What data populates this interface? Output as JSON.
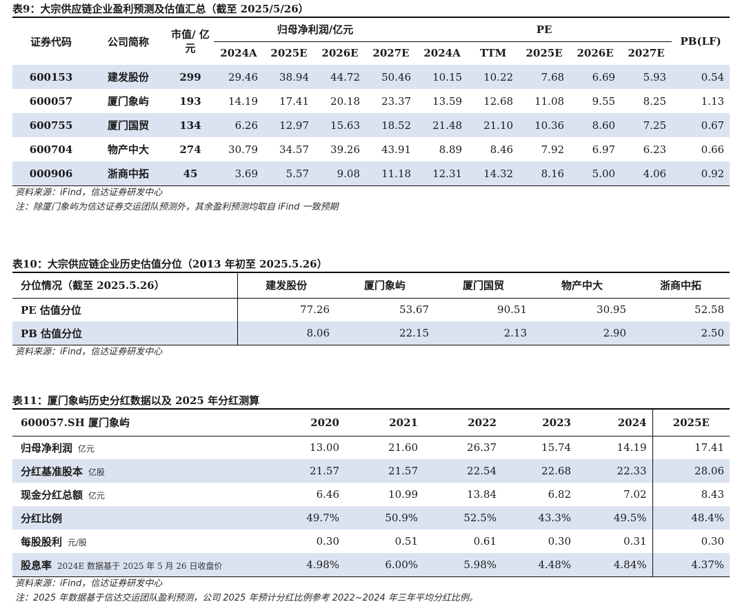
{
  "t9": {
    "title": "表9：大宗供应链企业盈利预测及估值汇总（截至 2025/5/26）",
    "h_code": "证券代码",
    "h_name": "公司简称",
    "h_mcap": "市值/ 亿元",
    "h_profit": "归母净利润/亿元",
    "h_pe": "PE",
    "h_pb": "PB(LF)",
    "sub": [
      "2024A",
      "2025E",
      "2026E",
      "2027E",
      "2024A",
      "TTM",
      "2025E",
      "2026E",
      "2027E"
    ],
    "rows": [
      {
        "code": "600153",
        "name": "建发股份",
        "mcap": "299",
        "vals": [
          "29.46",
          "38.94",
          "44.72",
          "50.46",
          "10.15",
          "10.22",
          "7.68",
          "6.69",
          "5.93",
          "0.54"
        ]
      },
      {
        "code": "600057",
        "name": "厦门象屿",
        "mcap": "193",
        "vals": [
          "14.19",
          "17.41",
          "20.18",
          "23.37",
          "13.59",
          "12.68",
          "11.08",
          "9.55",
          "8.25",
          "1.13"
        ]
      },
      {
        "code": "600755",
        "name": "厦门国贸",
        "mcap": "134",
        "vals": [
          "6.26",
          "12.97",
          "15.63",
          "18.52",
          "21.48",
          "21.10",
          "10.36",
          "8.60",
          "7.25",
          "0.67"
        ]
      },
      {
        "code": "600704",
        "name": "物产中大",
        "mcap": "274",
        "vals": [
          "30.79",
          "34.57",
          "39.26",
          "43.91",
          "8.89",
          "8.46",
          "7.92",
          "6.97",
          "6.23",
          "0.66"
        ]
      },
      {
        "code": "000906",
        "name": "浙商中拓",
        "mcap": "45",
        "vals": [
          "3.69",
          "5.57",
          "9.08",
          "11.18",
          "12.31",
          "14.32",
          "8.16",
          "5.00",
          "4.06",
          "0.92"
        ]
      }
    ],
    "source": "资料来源：iFind，信达证券研发中心",
    "note": "注：除厦门象屿为信达证券交运团队预测外，其余盈利预测均取自 iFind 一致预期"
  },
  "t10": {
    "title": "表10：大宗供应链企业历史估值分位（2013 年初至 2025.5.26）",
    "h_first": "分位情况（截至 2025.5.26）",
    "companies": [
      "建发股份",
      "厦门象屿",
      "厦门国贸",
      "物产中大",
      "浙商中拓"
    ],
    "rows": [
      {
        "label": "PE 估值分位",
        "vals": [
          "77.26",
          "53.67",
          "90.51",
          "30.95",
          "52.58"
        ]
      },
      {
        "label": "PB 估值分位",
        "vals": [
          "8.06",
          "22.15",
          "2.13",
          "2.90",
          "2.50"
        ]
      }
    ],
    "source": "资料来源：iFind，信达证券研发中心"
  },
  "t11": {
    "title": "表11：厦门象屿历史分红数据以及 2025 年分红测算",
    "h_first": "600057.SH 厦门象屿",
    "years": [
      "2020",
      "2021",
      "2022",
      "2023",
      "2024",
      "2025E"
    ],
    "rows": [
      {
        "label": "归母净利润",
        "unit": "亿元",
        "vals": [
          "13.00",
          "21.60",
          "26.37",
          "15.74",
          "14.19",
          "17.41"
        ]
      },
      {
        "label": "分红基准股本",
        "unit": "亿股",
        "vals": [
          "21.57",
          "21.57",
          "22.54",
          "22.68",
          "22.33",
          "28.06"
        ]
      },
      {
        "label": "现金分红总额",
        "unit": "亿元",
        "vals": [
          "6.46",
          "10.99",
          "13.84",
          "6.82",
          "7.02",
          "8.43"
        ]
      },
      {
        "label": "分红比例",
        "unit": "",
        "vals": [
          "49.7%",
          "50.9%",
          "52.5%",
          "43.3%",
          "49.5%",
          "48.4%"
        ]
      },
      {
        "label": "每股股利",
        "unit": "元/股",
        "vals": [
          "0.30",
          "0.51",
          "0.61",
          "0.30",
          "0.31",
          "0.30"
        ]
      },
      {
        "label": "股息率",
        "unit": "2024E 数据基于 2025 年 5 月 26 日收盘价",
        "vals": [
          "4.98%",
          "6.00%",
          "5.98%",
          "4.48%",
          "4.84%",
          "4.37%"
        ]
      }
    ],
    "source": "资料来源：iFind，信达证券研发中心",
    "note": "注：2025 年数据基于信达交运团队盈利预测，公司 2025 年预计分红比例参考 2022~2024 年三年平均分红比例。"
  }
}
